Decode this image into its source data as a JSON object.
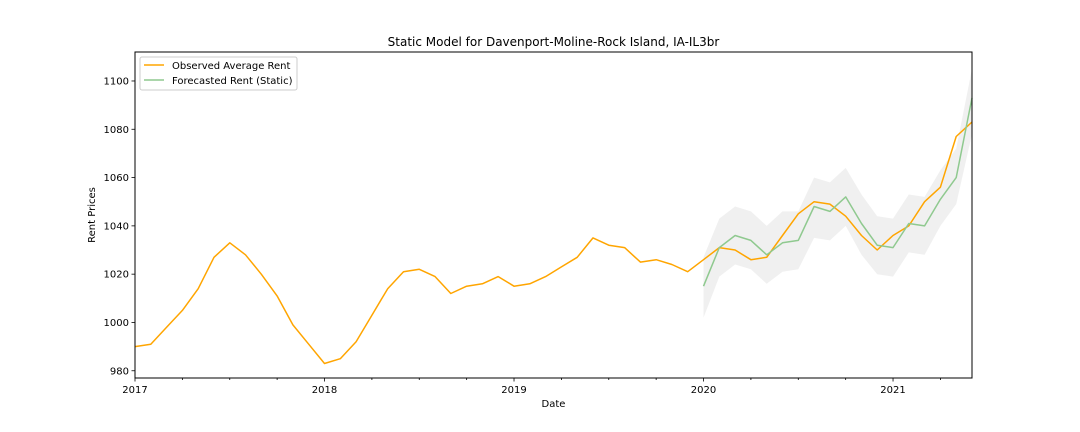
{
  "chart_data": {
    "type": "line",
    "title": "Static Model for Davenport-Moline-Rock Island, IA-IL3br",
    "xlabel": "Date",
    "ylabel": "Rent Prices",
    "xlim": [
      "2017-01",
      "2021-06"
    ],
    "ylim": [
      977,
      1112
    ],
    "x_ticks": [
      "2017",
      "2018",
      "2019",
      "2020",
      "2021"
    ],
    "y_ticks": [
      980,
      1000,
      1020,
      1040,
      1060,
      1080,
      1100
    ],
    "grid": false,
    "legend_position": "top-left",
    "series": [
      {
        "name": "Observed Average Rent",
        "color": "#ffa500",
        "x": [
          "2017-01",
          "2017-02",
          "2017-03",
          "2017-04",
          "2017-05",
          "2017-06",
          "2017-07",
          "2017-08",
          "2017-09",
          "2017-10",
          "2017-11",
          "2017-12",
          "2018-01",
          "2018-02",
          "2018-03",
          "2018-04",
          "2018-05",
          "2018-06",
          "2018-07",
          "2018-08",
          "2018-09",
          "2018-10",
          "2018-11",
          "2018-12",
          "2019-01",
          "2019-02",
          "2019-03",
          "2019-04",
          "2019-05",
          "2019-06",
          "2019-07",
          "2019-08",
          "2019-09",
          "2019-10",
          "2019-11",
          "2019-12",
          "2020-01",
          "2020-02",
          "2020-03",
          "2020-04",
          "2020-05",
          "2020-06",
          "2020-07",
          "2020-08",
          "2020-09",
          "2020-10",
          "2020-11",
          "2020-12",
          "2021-01",
          "2021-02",
          "2021-03",
          "2021-04",
          "2021-05",
          "2021-06"
        ],
        "values": [
          990,
          991,
          998,
          1005,
          1014,
          1027,
          1033,
          1028,
          1020,
          1011,
          999,
          991,
          983,
          985,
          992,
          1003,
          1014,
          1021,
          1022,
          1019,
          1012,
          1015,
          1016,
          1019,
          1015,
          1016,
          1019,
          1023,
          1027,
          1035,
          1032,
          1031,
          1025,
          1026,
          1024,
          1021,
          1026,
          1031,
          1030,
          1026,
          1027,
          1036,
          1045,
          1050,
          1049,
          1044,
          1036,
          1030,
          1036,
          1040,
          1050,
          1056,
          1077,
          1083
        ]
      },
      {
        "name": "Forecasted Rent (Static)",
        "color": "#8fc98f",
        "x": [
          "2020-01",
          "2020-02",
          "2020-03",
          "2020-04",
          "2020-05",
          "2020-06",
          "2020-07",
          "2020-08",
          "2020-09",
          "2020-10",
          "2020-11",
          "2020-12",
          "2021-01",
          "2021-02",
          "2021-03",
          "2021-04",
          "2021-05",
          "2021-06"
        ],
        "values": [
          1015,
          1031,
          1036,
          1034,
          1028,
          1033,
          1034,
          1048,
          1046,
          1052,
          1041,
          1032,
          1031,
          1041,
          1040,
          1051,
          1060,
          1093
        ],
        "lower": [
          1002,
          1019,
          1024,
          1022,
          1016,
          1021,
          1022,
          1035,
          1034,
          1040,
          1028,
          1020,
          1019,
          1029,
          1028,
          1040,
          1049,
          1078
        ],
        "upper": [
          1027,
          1043,
          1048,
          1046,
          1040,
          1046,
          1046,
          1060,
          1058,
          1064,
          1053,
          1044,
          1043,
          1053,
          1052,
          1063,
          1072,
          1105
        ]
      }
    ]
  }
}
